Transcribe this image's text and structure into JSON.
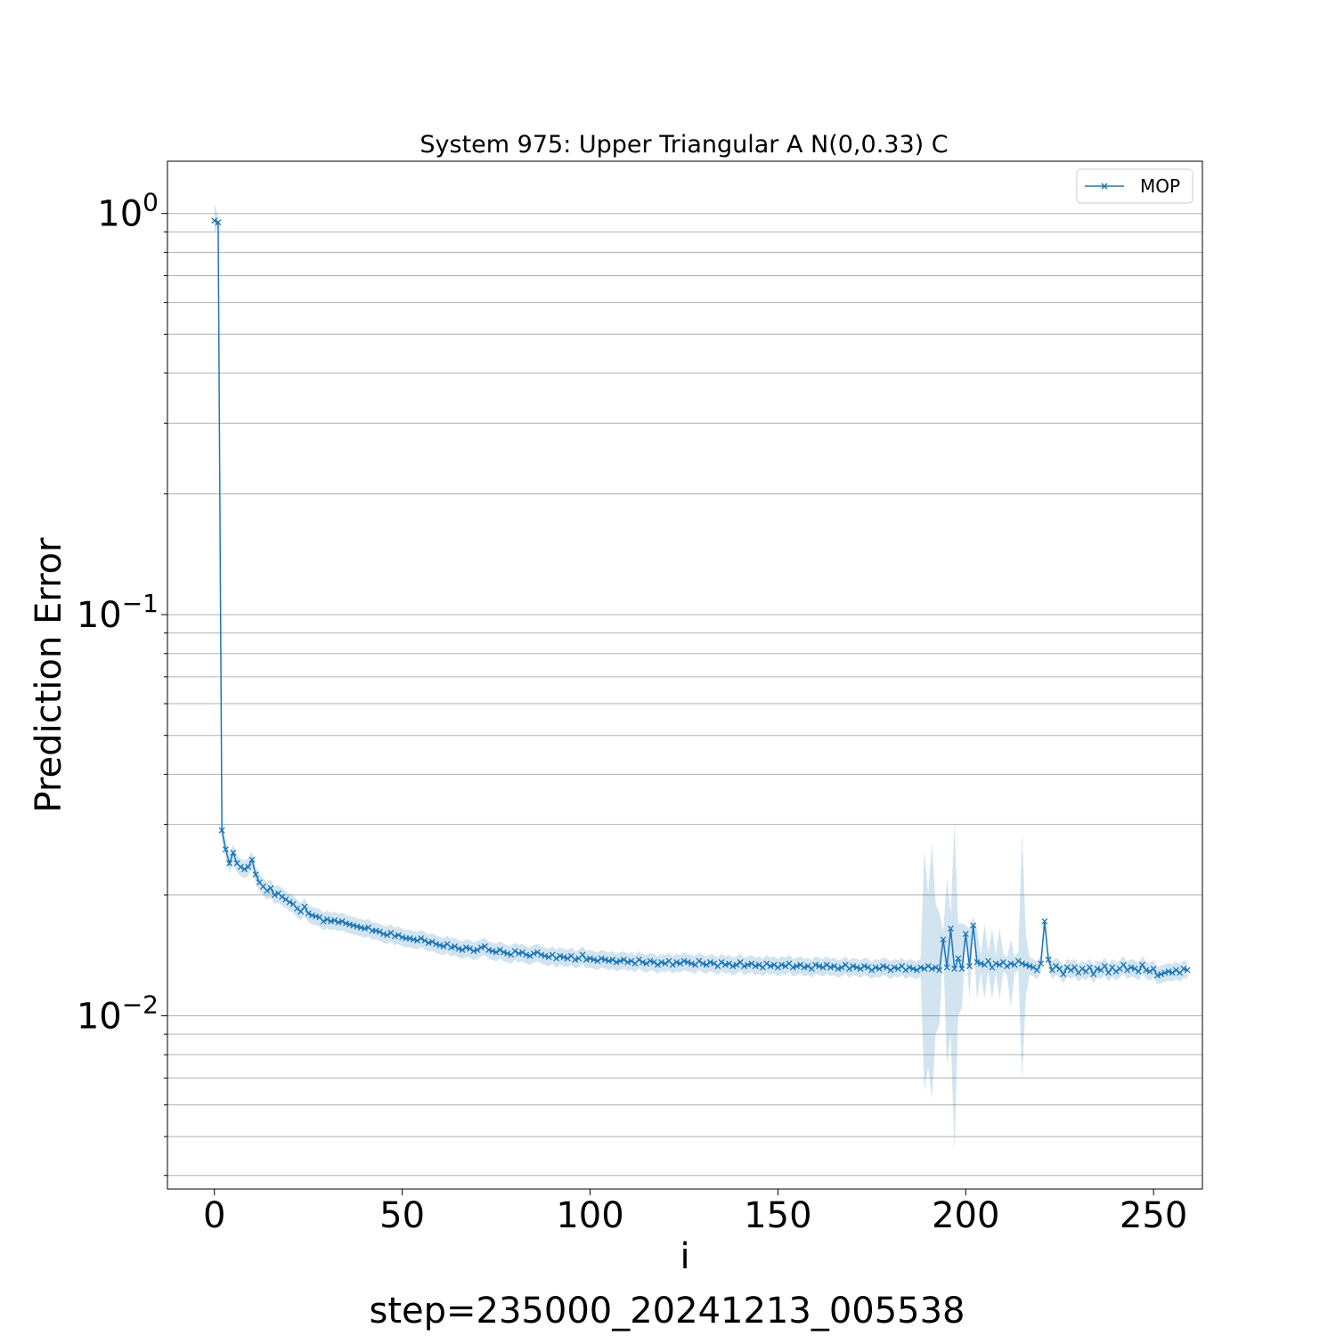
{
  "chart_data": {
    "type": "line",
    "title": "System 975: Upper Triangular A N(0,0.33) C",
    "xlabel": "i",
    "ylabel": "Prediction Error",
    "caption": "step=235000_20241213_005538",
    "yscale": "log",
    "xlim": [
      -12.5,
      263
    ],
    "ylim": [
      0.0037,
      1.35
    ],
    "grid": "y-major-and-minor",
    "legend": "top-right",
    "x_ticks": [
      0,
      50,
      100,
      150,
      200,
      250
    ],
    "x_tick_labels": [
      "0",
      "50",
      "100",
      "150",
      "200",
      "250"
    ],
    "y_ticks": [
      {
        "value": 1,
        "base": "10",
        "exp": "0"
      },
      {
        "value": 0.1,
        "base": "10",
        "exp": "−1"
      },
      {
        "value": 0.01,
        "base": "10",
        "exp": "−2"
      }
    ],
    "colors": {
      "line": "#1f77b4",
      "band": "#1f77b4",
      "grid": "#b0b0b0"
    },
    "series": [
      {
        "name": "MOP",
        "marker": "x",
        "x_start": 0,
        "x_step": 1,
        "values": [
          0.96,
          0.95,
          0.029,
          0.026,
          0.024,
          0.0255,
          0.024,
          0.0235,
          0.0232,
          0.0235,
          0.0245,
          0.0225,
          0.0215,
          0.021,
          0.0205,
          0.0208,
          0.02,
          0.0202,
          0.0198,
          0.0195,
          0.0192,
          0.019,
          0.0185,
          0.0182,
          0.0187,
          0.018,
          0.0178,
          0.0177,
          0.0176,
          0.0172,
          0.0174,
          0.0172,
          0.0173,
          0.0171,
          0.0172,
          0.017,
          0.0169,
          0.0168,
          0.0167,
          0.0166,
          0.0165,
          0.0166,
          0.0163,
          0.0163,
          0.0162,
          0.016,
          0.0159,
          0.0161,
          0.0158,
          0.0159,
          0.0157,
          0.0156,
          0.0156,
          0.0155,
          0.0154,
          0.0156,
          0.0154,
          0.0152,
          0.0153,
          0.0151,
          0.015,
          0.0149,
          0.0151,
          0.0148,
          0.0149,
          0.0147,
          0.0146,
          0.0148,
          0.0147,
          0.0145,
          0.0146,
          0.0148,
          0.0149,
          0.0146,
          0.0145,
          0.0144,
          0.0146,
          0.0144,
          0.0143,
          0.0142,
          0.0145,
          0.0143,
          0.0144,
          0.0142,
          0.0141,
          0.0143,
          0.0144,
          0.0142,
          0.0141,
          0.014,
          0.0142,
          0.0139,
          0.0141,
          0.014,
          0.0139,
          0.0141,
          0.0138,
          0.0139,
          0.0142,
          0.0138,
          0.0139,
          0.0138,
          0.0137,
          0.0139,
          0.0138,
          0.0137,
          0.0138,
          0.0136,
          0.0137,
          0.0138,
          0.0136,
          0.0137,
          0.0135,
          0.0138,
          0.0136,
          0.0135,
          0.0137,
          0.0136,
          0.0134,
          0.0136,
          0.0135,
          0.0137,
          0.0134,
          0.0136,
          0.0135,
          0.0137,
          0.0136,
          0.0135,
          0.0134,
          0.0137,
          0.0135,
          0.0134,
          0.0136,
          0.0135,
          0.0133,
          0.0136,
          0.0134,
          0.0135,
          0.0133,
          0.0134,
          0.0136,
          0.0133,
          0.0134,
          0.0135,
          0.0133,
          0.0134,
          0.0132,
          0.0135,
          0.0133,
          0.0134,
          0.0132,
          0.0134,
          0.0133,
          0.0135,
          0.0132,
          0.0133,
          0.0134,
          0.0132,
          0.0133,
          0.0131,
          0.0134,
          0.0133,
          0.0132,
          0.0134,
          0.0132,
          0.0133,
          0.0131,
          0.0132,
          0.0134,
          0.0131,
          0.0133,
          0.0132,
          0.0131,
          0.0133,
          0.0132,
          0.013,
          0.0132,
          0.0131,
          0.0133,
          0.0132,
          0.013,
          0.0132,
          0.0131,
          0.0133,
          0.013,
          0.0132,
          0.0131,
          0.013,
          0.0132,
          0.0131,
          0.0133,
          0.0131,
          0.0132,
          0.013,
          0.0155,
          0.0132,
          0.0165,
          0.0131,
          0.0139,
          0.0131,
          0.016,
          0.0133,
          0.0168,
          0.0136,
          0.0135,
          0.0134,
          0.0137,
          0.0132,
          0.0135,
          0.0134,
          0.0136,
          0.0133,
          0.0135,
          0.0134,
          0.0137,
          0.0135,
          0.0134,
          0.0133,
          0.0132,
          0.013,
          0.0135,
          0.0172,
          0.0138,
          0.013,
          0.0133,
          0.0131,
          0.0127,
          0.0132,
          0.013,
          0.0132,
          0.0128,
          0.0131,
          0.0129,
          0.0132,
          0.0127,
          0.0131,
          0.013,
          0.0133,
          0.0128,
          0.0132,
          0.0129,
          0.0131,
          0.0134,
          0.013,
          0.0132,
          0.0131,
          0.0129,
          0.0134,
          0.013,
          0.0129,
          0.0131,
          0.0126,
          0.0127,
          0.0128,
          0.0129,
          0.0128,
          0.013,
          0.0128,
          0.0131,
          0.013
        ],
        "band_rel": 0.05,
        "band_overrides": [
          {
            "x": 0,
            "low": 0.9,
            "high": 1.06
          },
          {
            "x": 1,
            "low": 0.92,
            "high": 0.98
          },
          {
            "x": 189,
            "low": 0.0065,
            "high": 0.026
          },
          {
            "x": 190,
            "low": 0.0075,
            "high": 0.02
          },
          {
            "x": 191,
            "low": 0.0062,
            "high": 0.027
          },
          {
            "x": 192,
            "low": 0.009,
            "high": 0.019
          },
          {
            "x": 193,
            "low": 0.0095,
            "high": 0.018
          },
          {
            "x": 195,
            "low": 0.0075,
            "high": 0.022
          },
          {
            "x": 196,
            "low": 0.009,
            "high": 0.018
          },
          {
            "x": 197,
            "low": 0.0046,
            "high": 0.03
          },
          {
            "x": 198,
            "low": 0.01,
            "high": 0.017
          },
          {
            "x": 199,
            "low": 0.0105,
            "high": 0.017
          },
          {
            "x": 201,
            "low": 0.011,
            "high": 0.0165
          },
          {
            "x": 203,
            "low": 0.011,
            "high": 0.0165
          },
          {
            "x": 205,
            "low": 0.011,
            "high": 0.017
          },
          {
            "x": 207,
            "low": 0.011,
            "high": 0.0165
          },
          {
            "x": 209,
            "low": 0.011,
            "high": 0.0165
          },
          {
            "x": 212,
            "low": 0.0105,
            "high": 0.0155
          },
          {
            "x": 215,
            "low": 0.0069,
            "high": 0.029
          },
          {
            "x": 216,
            "low": 0.0112,
            "high": 0.016
          }
        ]
      }
    ]
  }
}
